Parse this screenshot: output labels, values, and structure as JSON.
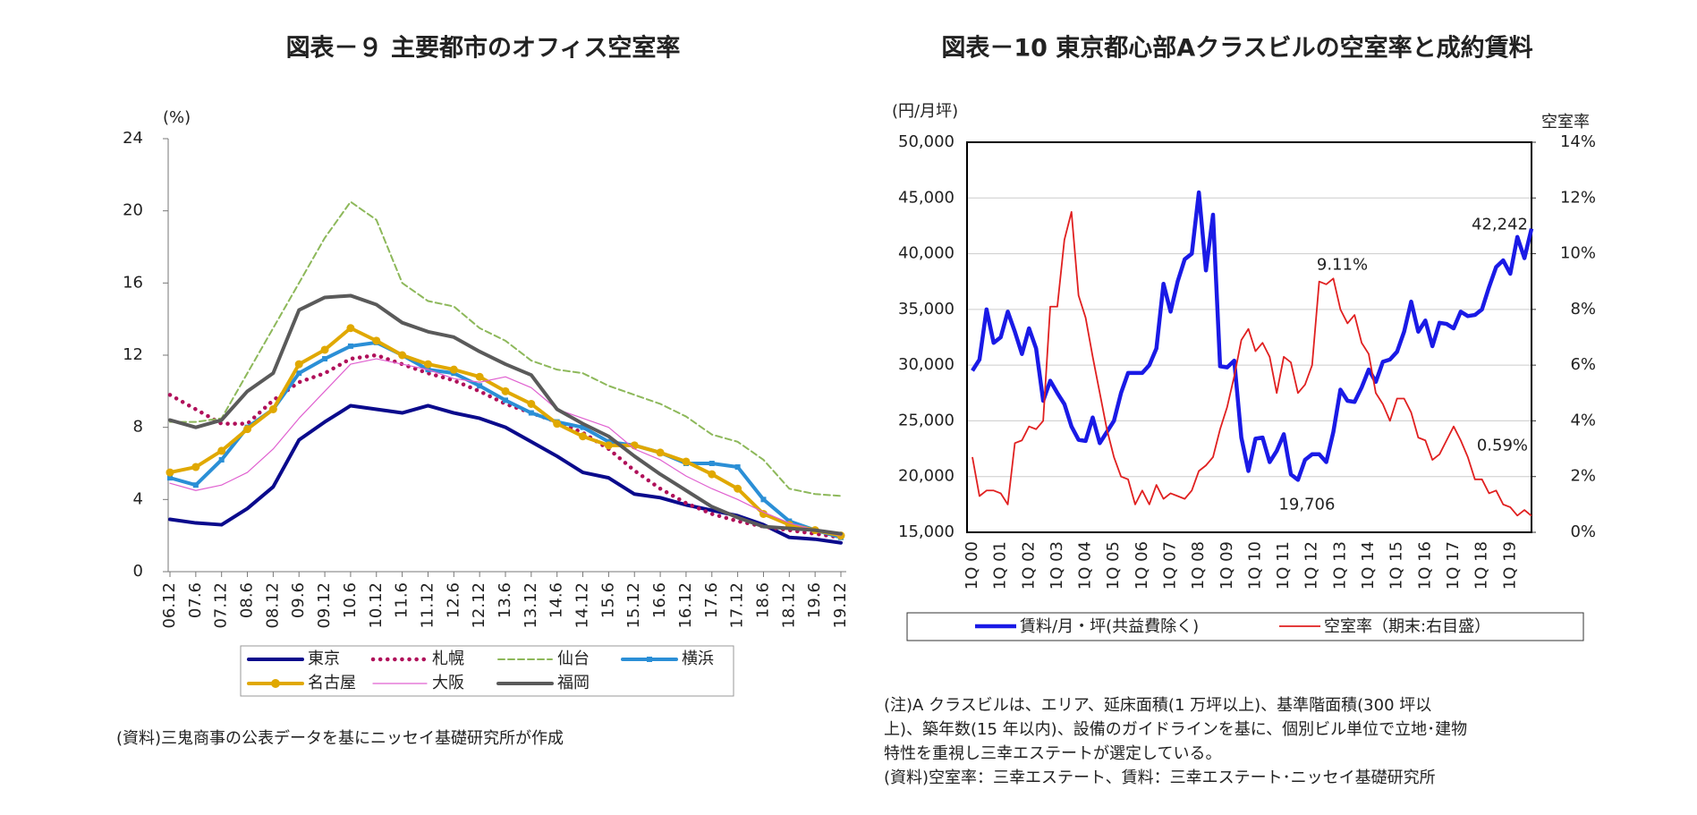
{
  "chart_data": [
    {
      "type": "line",
      "title": "図表－９ 主要都市のオフィス空室率",
      "y_label": "(%)",
      "categories": [
        "06.12",
        "07.6",
        "07.12",
        "08.6",
        "08.12",
        "09.6",
        "09.12",
        "10.6",
        "10.12",
        "11.6",
        "11.12",
        "12.6",
        "12.12",
        "13.6",
        "13.12",
        "14.6",
        "14.12",
        "15.6",
        "15.12",
        "16.6",
        "16.12",
        "17.6",
        "17.12",
        "18.6",
        "18.12",
        "19.6",
        "19.12"
      ],
      "ylim": [
        0,
        24
      ],
      "yticks": [
        0,
        4,
        8,
        12,
        16,
        20,
        24
      ],
      "series": [
        {
          "name": "東京",
          "color": "#0a0a8c",
          "style": "solid",
          "values": [
            2.9,
            2.7,
            2.6,
            3.5,
            4.7,
            7.3,
            8.3,
            9.2,
            9.0,
            8.8,
            9.2,
            8.8,
            8.5,
            8.0,
            7.2,
            6.4,
            5.5,
            5.2,
            4.3,
            4.1,
            3.7,
            3.4,
            3.1,
            2.6,
            1.9,
            1.8,
            1.6
          ]
        },
        {
          "name": "札幌",
          "color": "#b0105a",
          "style": "dotted",
          "values": [
            9.8,
            9.0,
            8.2,
            8.2,
            9.5,
            10.5,
            11.0,
            11.8,
            12.0,
            11.5,
            11.0,
            10.6,
            10.0,
            9.3,
            8.8,
            8.3,
            7.7,
            6.8,
            5.6,
            4.6,
            3.8,
            3.2,
            2.8,
            2.5,
            2.3,
            2.1,
            1.9
          ]
        },
        {
          "name": "仙台",
          "color": "#8db85a",
          "style": "dashed",
          "values": [
            8.3,
            8.3,
            8.5,
            11.0,
            13.5,
            16.0,
            18.5,
            20.5,
            19.5,
            16.0,
            15.0,
            14.7,
            13.5,
            12.8,
            11.7,
            11.2,
            11.0,
            10.3,
            9.8,
            9.3,
            8.6,
            7.6,
            7.2,
            6.2,
            4.6,
            4.3,
            4.2
          ]
        },
        {
          "name": "横浜",
          "color": "#2b8fd6",
          "style": "solid",
          "marker": "square",
          "values": [
            5.2,
            4.8,
            6.2,
            8.0,
            9.0,
            11.0,
            11.8,
            12.5,
            12.7,
            12.0,
            11.2,
            11.0,
            10.3,
            9.5,
            8.8,
            8.3,
            8.0,
            7.2,
            7.0,
            6.6,
            6.0,
            6.0,
            5.8,
            4.0,
            2.8,
            2.3,
            1.9
          ]
        },
        {
          "name": "名古屋",
          "color": "#e0a800",
          "style": "solid",
          "marker": "circle",
          "values": [
            5.5,
            5.8,
            6.7,
            7.9,
            9.0,
            11.5,
            12.3,
            13.5,
            12.8,
            12.0,
            11.5,
            11.2,
            10.8,
            10.0,
            9.3,
            8.2,
            7.5,
            7.0,
            7.0,
            6.6,
            6.1,
            5.4,
            4.6,
            3.2,
            2.6,
            2.3,
            2.0
          ]
        },
        {
          "name": "大阪",
          "color": "#e060d0",
          "style": "thin",
          "values": [
            4.9,
            4.5,
            4.8,
            5.5,
            6.8,
            8.5,
            10.0,
            11.5,
            11.8,
            11.5,
            11.2,
            10.7,
            10.5,
            10.8,
            10.2,
            9.0,
            8.5,
            8.0,
            6.8,
            6.2,
            5.3,
            4.6,
            4.0,
            3.3,
            2.7,
            2.3,
            2.0
          ]
        },
        {
          "name": "福岡",
          "color": "#5a5a5a",
          "style": "solid",
          "values": [
            8.4,
            8.0,
            8.4,
            10.0,
            11.0,
            14.5,
            15.2,
            15.3,
            14.8,
            13.8,
            13.3,
            13.0,
            12.2,
            11.5,
            10.9,
            9.0,
            8.2,
            7.5,
            6.4,
            5.4,
            4.5,
            3.6,
            3.0,
            2.5,
            2.4,
            2.3,
            2.1
          ]
        }
      ],
      "source": "(資料)三鬼商事の公表データを基にニッセイ基礎研究所が作成"
    },
    {
      "type": "line",
      "title": "図表－10 東京都心部Aクラスビルの空室率と成約賃料",
      "y_label": "(円/月坪)",
      "y2_label": "空室率",
      "categories": [
        "1Q 00",
        null,
        null,
        null,
        "1Q 01",
        null,
        null,
        null,
        "1Q 02",
        null,
        null,
        null,
        "1Q 03",
        null,
        null,
        null,
        "1Q 04",
        null,
        null,
        null,
        "1Q 05",
        null,
        null,
        null,
        "1Q 06",
        null,
        null,
        null,
        "1Q 07",
        null,
        null,
        null,
        "1Q 08",
        null,
        null,
        null,
        "1Q 09",
        null,
        null,
        null,
        "1Q 10",
        null,
        null,
        null,
        "1Q 11",
        null,
        null,
        null,
        "1Q 12",
        null,
        null,
        null,
        "1Q 13",
        null,
        null,
        null,
        "1Q 14",
        null,
        null,
        null,
        "1Q 15",
        null,
        null,
        null,
        "1Q 16",
        null,
        null,
        null,
        "1Q 17",
        null,
        null,
        null,
        "1Q 18",
        null,
        null,
        null,
        "1Q 19",
        null,
        null,
        null
      ],
      "ylim": [
        15000,
        50000
      ],
      "yticks": [
        {
          "value": 15000,
          "label": "15,000"
        },
        {
          "value": 20000,
          "label": "20,000"
        },
        {
          "value": 25000,
          "label": "25,000"
        },
        {
          "value": 30000,
          "label": "30,000"
        },
        {
          "value": 35000,
          "label": "35,000"
        },
        {
          "value": 40000,
          "label": "40,000"
        },
        {
          "value": 45000,
          "label": "45,000"
        },
        {
          "value": 50000,
          "label": "50,000"
        }
      ],
      "y2lim": [
        0,
        14
      ],
      "y2ticks": [
        {
          "value": 0,
          "label": "0%"
        },
        {
          "value": 2,
          "label": "2%"
        },
        {
          "value": 4,
          "label": "4%"
        },
        {
          "value": 6,
          "label": "6%"
        },
        {
          "value": 8,
          "label": "8%"
        },
        {
          "value": 10,
          "label": "10%"
        },
        {
          "value": 12,
          "label": "12%"
        },
        {
          "value": 14,
          "label": "14%"
        }
      ],
      "grid": true,
      "series": [
        {
          "name": "賃料/月・坪(共益費除く)",
          "color": "#1a1ae6",
          "values": [
            29500,
            30500,
            35000,
            32000,
            32500,
            34800,
            33000,
            31000,
            33300,
            31500,
            26800,
            28600,
            27500,
            26500,
            24500,
            23300,
            23200,
            25300,
            23000,
            24000,
            25000,
            27500,
            29300,
            29300,
            29300,
            30000,
            31500,
            37300,
            34800,
            37500,
            39500,
            40000,
            45500,
            38500,
            43500,
            29900,
            29800,
            30400,
            23500,
            20500,
            23400,
            23500,
            21300,
            22300,
            23800,
            20200,
            19706,
            21500,
            22000,
            22000,
            21300,
            24000,
            27800,
            26800,
            26700,
            28000,
            29600,
            28500,
            30300,
            30500,
            31200,
            33000,
            35700,
            33000,
            34000,
            31700,
            33800,
            33700,
            33300,
            34800,
            34400,
            34500,
            35000,
            37000,
            38800,
            39400,
            38200,
            41500,
            39600,
            42242
          ],
          "value_labels": [
            null,
            null,
            null,
            null,
            null,
            null,
            null,
            null,
            null,
            null,
            null,
            null,
            null,
            null,
            null,
            null,
            null,
            null,
            null,
            null,
            null,
            null,
            null,
            null,
            null,
            null,
            null,
            null,
            null,
            null,
            null,
            null,
            null,
            null,
            null,
            null,
            null,
            null,
            null,
            null,
            null,
            null,
            null,
            null,
            null,
            null,
            "19,706",
            null,
            null,
            null,
            null,
            null,
            null,
            null,
            null,
            null,
            null,
            null,
            null,
            null,
            null,
            null,
            null,
            null,
            null,
            null,
            null,
            null,
            null,
            null,
            null,
            null,
            null,
            null,
            null,
            null,
            null,
            null,
            null,
            "42,242"
          ]
        },
        {
          "name": "空室率（期末:右目盛）",
          "color": "#e02020",
          "axis": "y2",
          "values": [
            2.7,
            1.3,
            1.5,
            1.5,
            1.4,
            1.0,
            3.2,
            3.3,
            3.8,
            3.7,
            4.0,
            8.1,
            8.1,
            10.5,
            11.5,
            8.5,
            7.7,
            6.3,
            5.0,
            3.7,
            2.7,
            2.0,
            1.9,
            1.0,
            1.5,
            1.0,
            1.7,
            1.2,
            1.4,
            1.3,
            1.2,
            1.5,
            2.2,
            2.4,
            2.7,
            3.7,
            4.5,
            5.6,
            6.9,
            7.3,
            6.5,
            6.8,
            6.3,
            5.0,
            6.3,
            6.1,
            5.0,
            5.3,
            6.0,
            9.0,
            8.9,
            9.11,
            8.0,
            7.5,
            7.8,
            6.8,
            6.4,
            5.0,
            4.6,
            4.0,
            4.8,
            4.8,
            4.3,
            3.4,
            3.3,
            2.6,
            2.8,
            3.3,
            3.8,
            3.3,
            2.7,
            1.9,
            1.9,
            1.4,
            1.5,
            1.0,
            0.9,
            0.6,
            0.8,
            0.59
          ],
          "value_labels": [
            null,
            null,
            null,
            null,
            null,
            null,
            null,
            null,
            null,
            null,
            null,
            null,
            null,
            null,
            null,
            null,
            null,
            null,
            null,
            null,
            null,
            null,
            null,
            null,
            null,
            null,
            null,
            null,
            null,
            null,
            null,
            null,
            null,
            null,
            null,
            null,
            null,
            null,
            null,
            null,
            null,
            null,
            null,
            null,
            null,
            null,
            null,
            null,
            null,
            null,
            null,
            "9.11%",
            null,
            null,
            null,
            null,
            null,
            null,
            null,
            null,
            null,
            null,
            null,
            null,
            null,
            null,
            null,
            null,
            null,
            null,
            null,
            null,
            null,
            null,
            null,
            null,
            null,
            null,
            null,
            "0.59%"
          ]
        }
      ],
      "notes": [
        "(注)A クラスビルは、エリア、延床面積(1 万坪以上)、基準階面積(300 坪以",
        "上)、築年数(15 年以内)、設備のガイドラインを基に、個別ビル単位で立地･建物",
        "特性を重視し三幸エステートが選定している。",
        "(資料)空室率：三幸エステート、賃料：三幸エステート･ニッセイ基礎研究所"
      ]
    }
  ]
}
